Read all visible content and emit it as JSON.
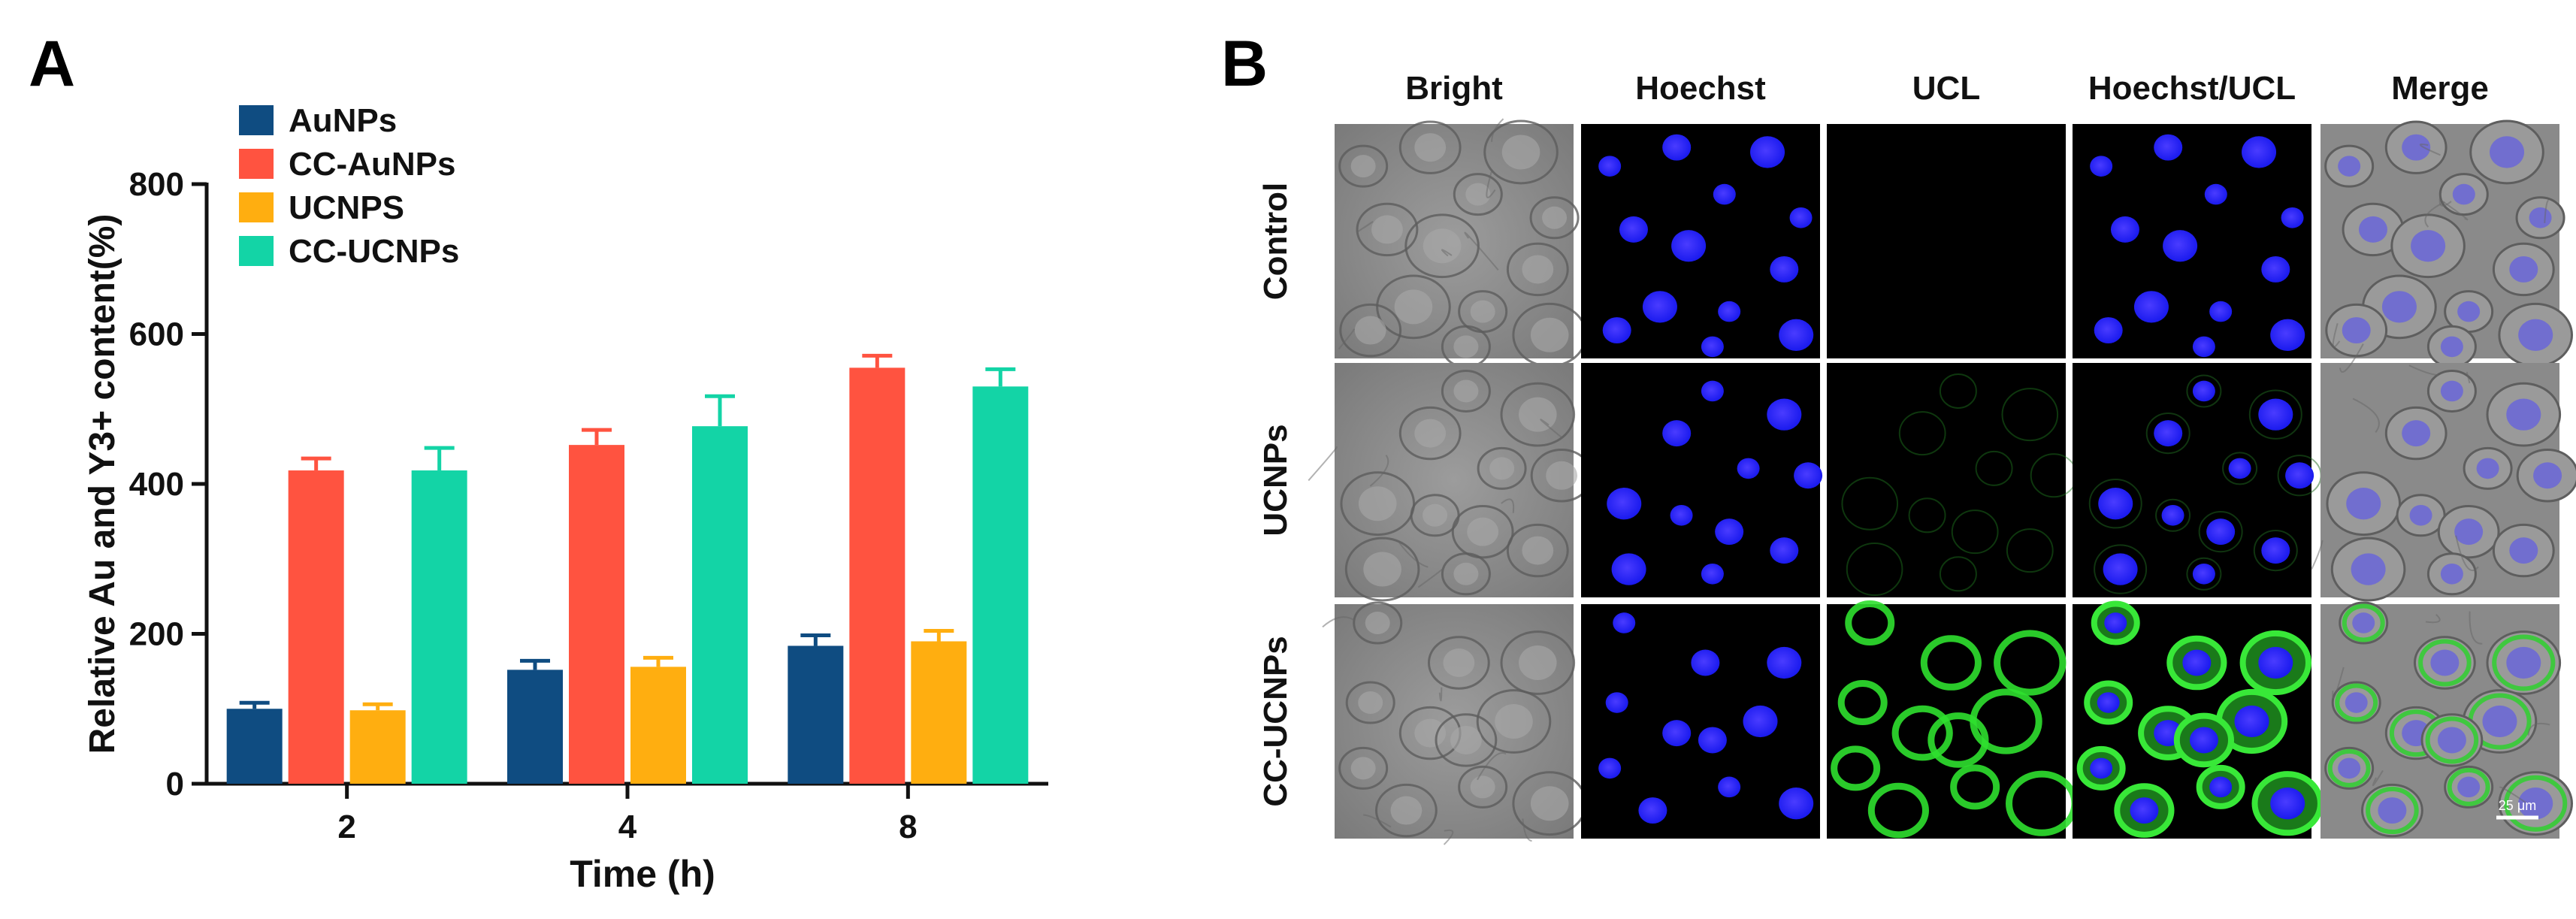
{
  "panels": {
    "a": {
      "letter": "A"
    },
    "b": {
      "letter": "B"
    }
  },
  "chart_data": {
    "type": "bar",
    "xlabel": "Time (h)",
    "ylabel": "Relative Au and Y3+ content(%)",
    "ylim": [
      0,
      800
    ],
    "yticks": [
      0,
      200,
      400,
      600,
      800
    ],
    "categories": [
      "2",
      "4",
      "8"
    ],
    "legend_position": "top-left",
    "series": [
      {
        "name": "AuNPs",
        "color": "#0f4c81",
        "values": [
          100,
          152,
          184
        ],
        "errors": [
          8,
          12,
          14
        ]
      },
      {
        "name": "CC-AuNPs",
        "color": "#ff5340",
        "values": [
          418,
          452,
          555
        ],
        "errors": [
          16,
          20,
          16
        ]
      },
      {
        "name": "UCNPS",
        "color": "#ffae10",
        "values": [
          98,
          156,
          190
        ],
        "errors": [
          8,
          12,
          14
        ]
      },
      {
        "name": "CC-UCNPs",
        "color": "#13d4a6",
        "values": [
          418,
          477,
          530
        ],
        "errors": [
          30,
          40,
          23
        ]
      }
    ]
  },
  "micrographs": {
    "columns": [
      "Bright",
      "Hoechst",
      "UCL",
      "Hoechst/UCL",
      "Merge"
    ],
    "rows": [
      "Control",
      "UCNPs",
      "CC-UCNPs"
    ],
    "scale_bar": "25 μm"
  }
}
